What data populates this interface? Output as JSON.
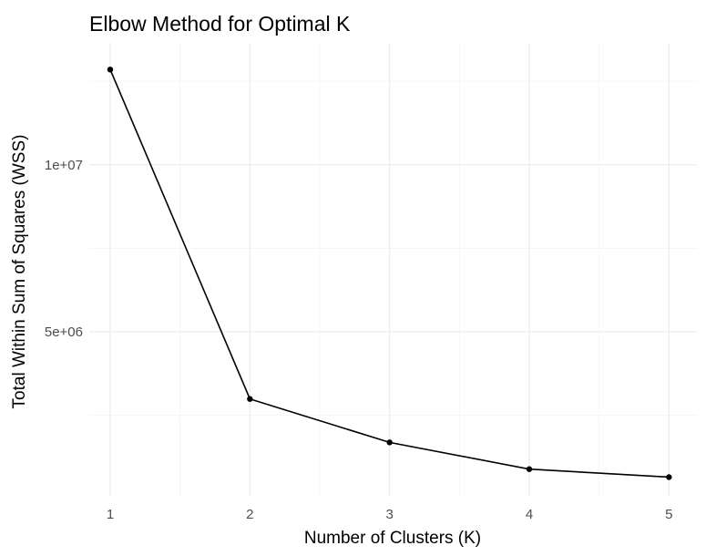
{
  "chart_data": {
    "type": "line",
    "title": "Elbow Method for Optimal K",
    "xlabel": "Number of Clusters (K)",
    "ylabel": "Total Within Sum of Squares (WSS)",
    "x": [
      1,
      2,
      3,
      4,
      5
    ],
    "series": [
      {
        "values": [
          12850000,
          2990000,
          1690000,
          890000,
          650000
        ]
      }
    ],
    "xlim": [
      0.85,
      5.2
    ],
    "ylim": [
      90000,
      13650000
    ],
    "x_ticks": [
      1,
      2,
      3,
      4,
      5
    ],
    "x_tick_labels": [
      "1",
      "2",
      "3",
      "4",
      "5"
    ],
    "y_ticks": [
      5000000,
      10000000
    ],
    "y_tick_labels": [
      "5e+06",
      "1e+07"
    ],
    "y_minor_ticks": [
      2500000,
      7500000,
      12500000
    ],
    "x_minor_ticks": [
      1.5,
      2.5,
      3.5,
      4.5
    ],
    "grid": true,
    "colors": {
      "line": "#000000",
      "grid": "#ebebeb",
      "tick_text": "#4d4d4d"
    }
  }
}
